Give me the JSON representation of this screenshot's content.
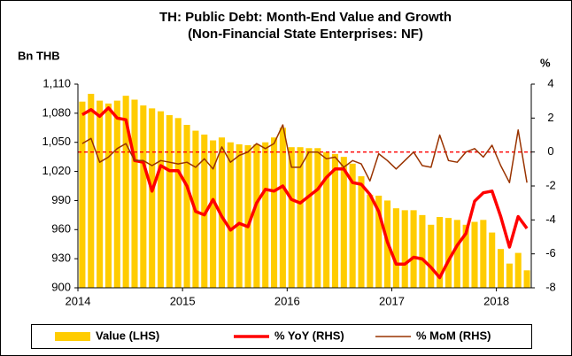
{
  "chart_data": {
    "type": "bar_line",
    "title": "TH: Public Debt: Month-End Value and Growth",
    "subtitle": "(Non-Financial State Enterprises: NF)",
    "y_label": "Bn THB",
    "y2_label": "%",
    "categories": [
      "2014",
      null,
      null,
      null,
      null,
      null,
      null,
      null,
      null,
      null,
      null,
      null,
      "2015",
      null,
      null,
      null,
      null,
      null,
      null,
      null,
      null,
      null,
      null,
      null,
      "2016",
      null,
      null,
      null,
      null,
      null,
      null,
      null,
      null,
      null,
      null,
      null,
      "2017",
      null,
      null,
      null,
      null,
      null,
      null,
      null,
      null,
      null,
      null,
      null,
      "2018",
      null,
      null,
      null
    ],
    "series": [
      {
        "name": "Value (LHS)",
        "type": "bar",
        "color": "#ffcc00",
        "values": [
          1092,
          1100,
          1093,
          1090,
          1093,
          1098,
          1094,
          1088,
          1085,
          1082,
          1078,
          1075,
          1068,
          1062,
          1058,
          1052,
          1055,
          1050,
          1048,
          1047,
          1048,
          1050,
          1055,
          1065,
          1045,
          1045,
          1044,
          1044,
          1040,
          1038,
          1035,
          1028,
          1015,
          996,
          995,
          990,
          982,
          980,
          980,
          975,
          965,
          973,
          972,
          970,
          965,
          968,
          970,
          957,
          940,
          925,
          936,
          918
        ]
      },
      {
        "name": "% YoY (RHS)",
        "type": "line",
        "axis": "y2",
        "color": "#ff0000",
        "values": [
          2.2,
          2.5,
          2.1,
          2.6,
          2.0,
          1.9,
          -0.5,
          -0.6,
          -2.3,
          -0.8,
          -1.1,
          -1.1,
          -2.0,
          -3.5,
          -3.7,
          -2.8,
          -3.8,
          -4.6,
          -4.2,
          -4.4,
          -3.0,
          -2.2,
          -2.3,
          -2.0,
          -2.8,
          -3.0,
          -2.6,
          -2.2,
          -1.5,
          -1.0,
          -1.0,
          -1.8,
          -1.9,
          -2.5,
          -3.5,
          -5.3,
          -6.6,
          -6.6,
          -6.2,
          -6.3,
          -6.8,
          -7.4,
          -6.4,
          -5.5,
          -4.8,
          -2.9,
          -2.4,
          -2.3,
          -3.8,
          -5.6,
          -3.8,
          -4.5
        ]
      },
      {
        "name": "% MoM (RHS)",
        "type": "line",
        "axis": "y2",
        "color": "#993300",
        "values": [
          0.5,
          0.8,
          -0.6,
          -0.3,
          0.2,
          0.5,
          -0.5,
          -0.5,
          -0.8,
          -0.5,
          -0.6,
          -0.7,
          -0.6,
          -0.9,
          -0.4,
          -1.0,
          0.3,
          -0.6,
          -0.2,
          0.0,
          0.5,
          0.2,
          0.5,
          1.6,
          -0.9,
          -0.9,
          0.0,
          0.0,
          -0.4,
          -0.3,
          -0.9,
          -0.5,
          -0.7,
          -1.7,
          -0.1,
          -0.5,
          -1.0,
          -0.5,
          0.0,
          -0.8,
          -0.9,
          1.0,
          -0.5,
          -0.6,
          0.0,
          0.2,
          -0.3,
          0.4,
          -0.8,
          -1.8,
          1.3,
          -1.8
        ]
      }
    ],
    "ylim": [
      900,
      1110
    ],
    "yticks": [
      {
        "value": 900,
        "label": "900"
      },
      {
        "value": 930,
        "label": "930"
      },
      {
        "value": 960,
        "label": "960"
      },
      {
        "value": 990,
        "label": "990"
      },
      {
        "value": 1020,
        "label": "1,020"
      },
      {
        "value": 1050,
        "label": "1,050"
      },
      {
        "value": 1080,
        "label": "1,080"
      },
      {
        "value": 1110,
        "label": "1,110"
      }
    ],
    "y2lim": [
      -8,
      4
    ],
    "y2ticks": [
      -8,
      -6,
      -4,
      -2,
      0,
      2,
      4
    ],
    "reference_line": {
      "axis": "y2",
      "value": 0,
      "color": "#ff0000"
    },
    "legend": "bottom",
    "grid": false
  }
}
